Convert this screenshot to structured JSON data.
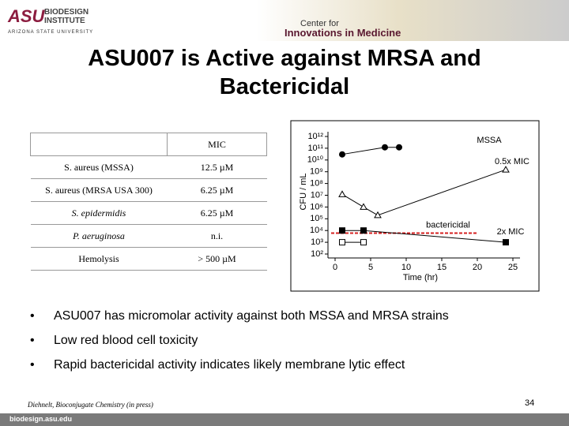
{
  "header": {
    "logo": "ASU",
    "institute_line1": "BIODESIGN",
    "institute_line2": "INSTITUTE",
    "university": "ARIZONA STATE UNIVERSITY",
    "center_line1": "Center for",
    "center_line2": "Innovations in Medicine"
  },
  "title": "ASU007 is Active against MRSA and Bactericidal",
  "table": {
    "header": "MIC",
    "rows": [
      [
        "S. aureus (MSSA)",
        "12.5 µM"
      ],
      [
        "S. aureus (MRSA USA 300)",
        "6.25 µM"
      ],
      [
        "S. epidermidis",
        "6.25 µM"
      ],
      [
        "P. aeruginosa",
        "n.i."
      ],
      [
        "Hemolysis",
        "> 500 µM"
      ]
    ]
  },
  "chart_data": {
    "type": "line",
    "xlabel": "Time (hr)",
    "ylabel": "CFU / mL",
    "log_y": true,
    "xlim": [
      -1,
      26
    ],
    "xticks": [
      0,
      5,
      10,
      15,
      20,
      25
    ],
    "ylim": [
      100,
      1000000000000
    ],
    "yticks": [
      {
        "value": 1000000000000,
        "label": "10¹²"
      },
      {
        "value": 100000000000,
        "label": "10¹¹"
      },
      {
        "value": 10000000000,
        "label": "10¹⁰"
      },
      {
        "value": 1000000000,
        "label": "10⁹"
      },
      {
        "value": 100000000,
        "label": "10⁸"
      },
      {
        "value": 10000000,
        "label": "10⁷"
      },
      {
        "value": 1000000,
        "label": "10⁶"
      },
      {
        "value": 100000,
        "label": "10⁵"
      },
      {
        "value": 10000,
        "label": "10⁴"
      },
      {
        "value": 1000,
        "label": "10³"
      },
      {
        "value": 100,
        "label": "10²"
      }
    ],
    "series": [
      {
        "name": "MSSA",
        "color": "#000000",
        "marker": "circle",
        "filled": true,
        "x": [
          1,
          7,
          9
        ],
        "values": [
          30000000000,
          120000000000,
          120000000000
        ]
      },
      {
        "name": "0.5x MIC",
        "color": "#000000",
        "marker": "triangle",
        "filled": false,
        "x": [
          1,
          4,
          6,
          24
        ],
        "values": [
          12000000,
          1000000,
          200000,
          1500000000
        ]
      },
      {
        "name": "2x MIC",
        "color": "#000000",
        "marker": "square",
        "filled": true,
        "x": [
          1,
          4,
          24
        ],
        "values": [
          10000,
          10000,
          1000
        ]
      },
      {
        "color": "#000000",
        "marker": "square",
        "filled": false,
        "x": [
          1,
          4
        ],
        "values": [
          1000,
          1000
        ]
      }
    ],
    "threshold": {
      "label": "bactericidal",
      "value": 6000,
      "color": "#d42020"
    }
  },
  "bullets": [
    "ASU007 has micromolar activity against both MSSA and MRSA strains",
    "Low red blood cell toxicity",
    "Rapid bactericidal activity indicates likely membrane lytic effect"
  ],
  "footer": {
    "citation": "Diehnelt, Bioconjugate Chemistry (in press)",
    "page": "34",
    "url": "biodesign.asu.edu"
  }
}
